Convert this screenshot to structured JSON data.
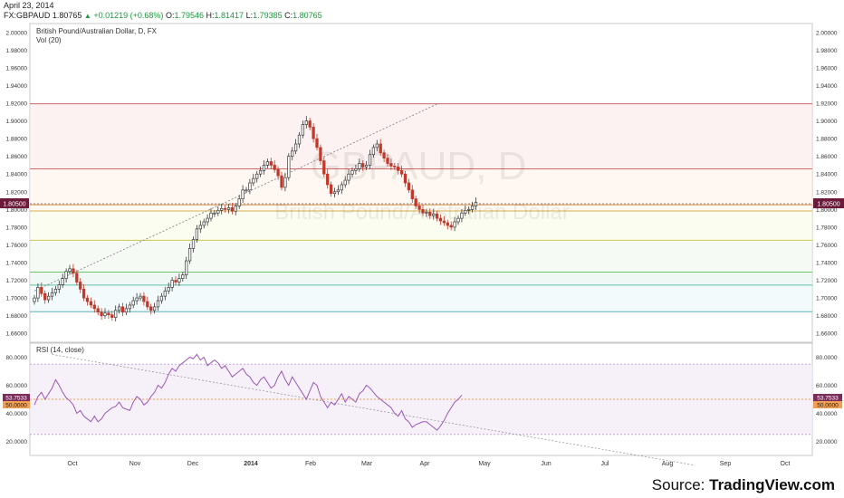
{
  "header": {
    "date": "April 23, 2014",
    "symbol": "FX:GBPAUD",
    "last": "1.80765",
    "change": "+0.01219 (+0.68%)",
    "o_label": "O:",
    "o": "1.79546",
    "h_label": "H:",
    "h": "1.81417",
    "l_label": "L:",
    "l": "1.79385",
    "c_label": "C:",
    "c": "1.80765"
  },
  "colors": {
    "up": "#3a3a3a",
    "down": "#c0392b",
    "rsi": "#9b59b6",
    "price_badge": "#6b1a3a",
    "rsi_badge": "#7b2c5a",
    "mid_line": "#f0a050"
  },
  "source_label": "Source:",
  "source_brand": "TradingView.com",
  "chart_data": [
    {
      "type": "candlestick",
      "title": "British Pound/Australian Dollar, D, FX",
      "subtitle": "Vol (20)",
      "watermark_symbol": "GBPAUD, D",
      "watermark_name": "British Pound/Australian Dollar",
      "ylim": [
        1.65,
        2.01
      ],
      "y_ticks": [
        "2.00000",
        "1.98000",
        "1.96000",
        "1.94000",
        "1.92000",
        "1.90000",
        "1.88000",
        "1.86000",
        "1.84000",
        "1.82000",
        "1.80000",
        "1.78000",
        "1.76000",
        "1.74000",
        "1.72000",
        "1.70000",
        "1.68000",
        "1.66000"
      ],
      "last_price_label": "1.80500",
      "fib_levels": [
        1.6845,
        1.7146,
        1.7292,
        1.7652,
        1.7983,
        1.8053,
        1.8458,
        1.9194
      ],
      "trendline": [
        [
          0,
          1.708
        ],
        [
          114,
          1.919
        ]
      ],
      "closes": [
        1.7,
        1.712,
        1.705,
        1.698,
        1.702,
        1.706,
        1.71,
        1.715,
        1.722,
        1.73,
        1.733,
        1.728,
        1.718,
        1.71,
        1.7,
        1.696,
        1.692,
        1.688,
        1.684,
        1.68,
        1.683,
        1.681,
        1.678,
        1.686,
        1.69,
        1.684,
        1.688,
        1.692,
        1.697,
        1.7,
        1.702,
        1.696,
        1.69,
        1.686,
        1.69,
        1.697,
        1.702,
        1.708,
        1.712,
        1.72,
        1.718,
        1.722,
        1.726,
        1.742,
        1.756,
        1.766,
        1.778,
        1.782,
        1.786,
        1.79,
        1.796,
        1.796,
        1.799,
        1.801,
        1.8,
        1.802,
        1.798,
        1.804,
        1.812,
        1.822,
        1.822,
        1.83,
        1.835,
        1.84,
        1.844,
        1.85,
        1.854,
        1.85,
        1.845,
        1.838,
        1.825,
        1.836,
        1.86,
        1.866,
        1.874,
        1.884,
        1.896,
        1.9,
        1.893,
        1.88,
        1.87,
        1.855,
        1.84,
        1.828,
        1.818,
        1.82,
        1.822,
        1.828,
        1.833,
        1.84,
        1.844,
        1.846,
        1.852,
        1.848,
        1.85,
        1.862,
        1.87,
        1.874,
        1.864,
        1.858,
        1.852,
        1.849,
        1.848,
        1.844,
        1.84,
        1.83,
        1.822,
        1.812,
        1.804,
        1.8,
        1.796,
        1.797,
        1.793,
        1.795,
        1.79,
        1.787,
        1.785,
        1.782,
        1.78,
        1.786,
        1.79,
        1.796,
        1.799,
        1.8,
        1.804,
        1.808
      ]
    },
    {
      "type": "line",
      "title": "RSI (14, close)",
      "ylim": [
        10,
        90
      ],
      "y_ticks": [
        "80.0000",
        "60.0000",
        "40.0000",
        "20.0000"
      ],
      "bands": [
        75,
        50,
        25
      ],
      "label_rsi": "53.7533",
      "label_mid": "50.0000",
      "trendline": [
        [
          5,
          82
        ],
        [
          187,
          3
        ]
      ],
      "values": [
        46,
        52,
        55,
        50,
        54,
        58,
        64,
        60,
        55,
        51,
        49,
        46,
        40,
        42,
        38,
        36,
        34,
        38,
        34,
        36,
        40,
        42,
        44,
        45,
        48,
        44,
        43,
        42,
        48,
        52,
        50,
        46,
        48,
        52,
        55,
        60,
        58,
        62,
        68,
        72,
        70,
        74,
        76,
        78,
        80,
        79,
        82,
        78,
        80,
        74,
        76,
        78,
        76,
        72,
        74,
        70,
        66,
        68,
        70,
        72,
        68,
        66,
        62,
        60,
        64,
        66,
        62,
        58,
        60,
        66,
        70,
        64,
        60,
        66,
        62,
        58,
        54,
        50,
        56,
        62,
        60,
        52,
        48,
        44,
        48,
        46,
        50,
        54,
        48,
        52,
        50,
        48,
        54,
        56,
        60,
        58,
        55,
        52,
        50,
        48,
        46,
        44,
        40,
        38,
        42,
        36,
        34,
        30,
        32,
        33,
        34,
        34,
        32,
        30,
        28,
        31,
        35,
        40,
        44,
        48,
        50,
        53
      ]
    }
  ],
  "x_axis": {
    "labels": [
      "Oct",
      "Nov",
      "Dec",
      "2014",
      "Feb",
      "Mar",
      "Apr",
      "May",
      "Jun",
      "Jul",
      "Aug",
      "Sep",
      "Oct"
    ]
  }
}
